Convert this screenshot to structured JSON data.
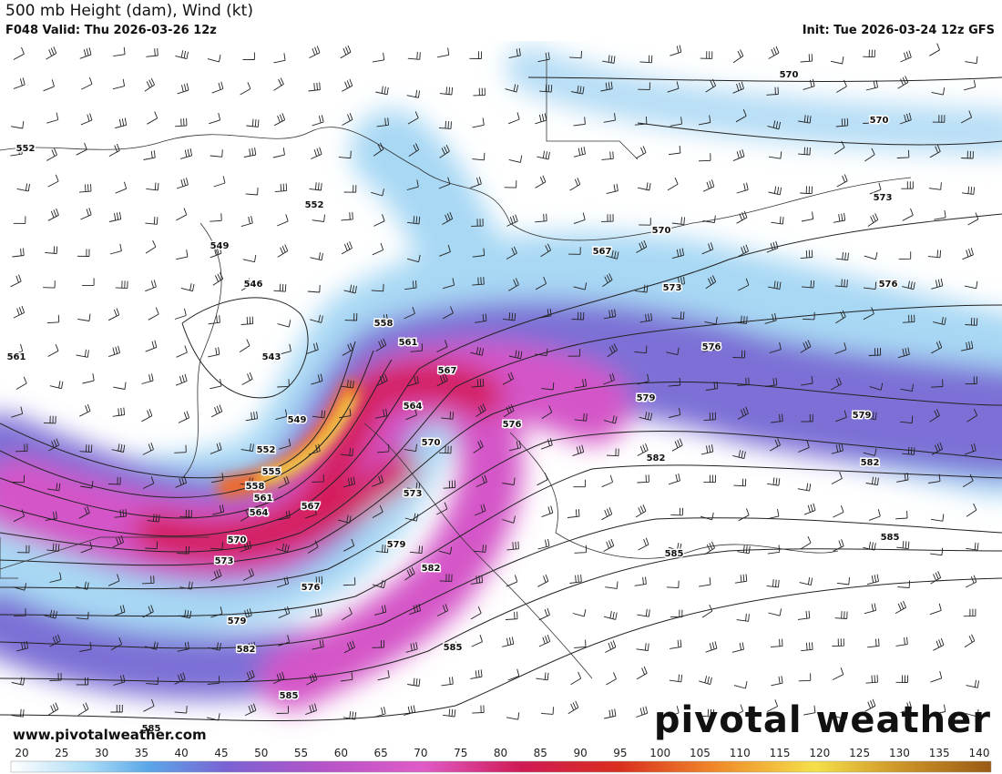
{
  "header": {
    "title": "500 mb Height (dam), Wind (kt)",
    "valid": "F048 Valid: Thu 2026-03-26 12z",
    "init": "Init: Tue 2026-03-24 12z GFS"
  },
  "map": {
    "contour_labels": [
      "552",
      "552",
      "549",
      "546",
      "543",
      "549",
      "552",
      "555",
      "558",
      "561",
      "564",
      "567",
      "570",
      "573",
      "576",
      "579",
      "582",
      "585",
      "585",
      "561",
      "558",
      "561",
      "567",
      "564",
      "570",
      "573",
      "576",
      "579",
      "582",
      "585",
      "567",
      "570",
      "573",
      "576",
      "579",
      "582",
      "585",
      "570",
      "570",
      "573",
      "576",
      "579",
      "582",
      "585"
    ]
  },
  "footer": {
    "website": "www.pivotalweather.com",
    "logo": "pivotal weather"
  },
  "colorbar": {
    "labels": [
      "20",
      "25",
      "30",
      "35",
      "40",
      "45",
      "50",
      "55",
      "60",
      "65",
      "70",
      "75",
      "80",
      "85",
      "90",
      "95",
      "100",
      "105",
      "110",
      "115",
      "120",
      "125",
      "130",
      "135",
      "140"
    ]
  }
}
